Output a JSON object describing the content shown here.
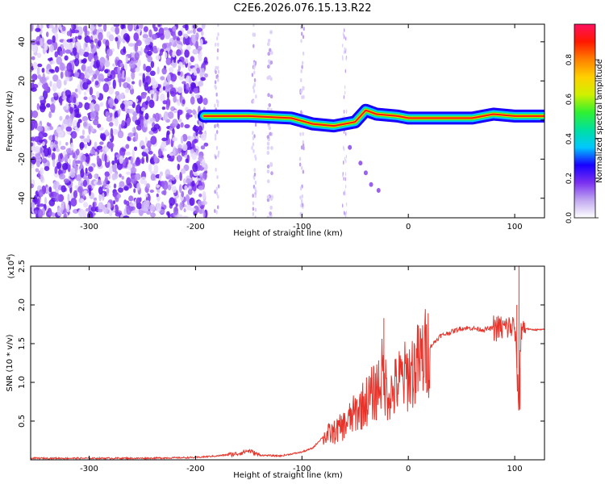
{
  "title": "C2E6.2026.076.15.13.R22",
  "chart_data": [
    {
      "type": "heatmap",
      "xlabel": "Height of straight line (km)",
      "ylabel": "Frequency (Hz)",
      "xlim": [
        -355,
        128
      ],
      "ylim": [
        -50,
        49
      ],
      "xticks": [
        -300,
        -200,
        -100,
        0,
        100
      ],
      "yticks": [
        -40,
        -20,
        0,
        20,
        40
      ],
      "colorbar": {
        "label": "Normalized spectral amplitude",
        "range": [
          0,
          0.98
        ],
        "ticks": [
          0.0,
          0.2,
          0.4,
          0.6,
          0.8
        ],
        "colors": [
          "#ffffff",
          "#c0a8f0",
          "#7a30f0",
          "#1800ff",
          "#00c8ff",
          "#00e0a0",
          "#30f030",
          "#d0f000",
          "#ffd000",
          "#ff8000",
          "#ff1800",
          "#ff1060"
        ]
      },
      "noise_region_x": [
        -355,
        -190
      ],
      "ridge_x": [
        -192,
        -150,
        -110,
        -90,
        -70,
        -50,
        -40,
        -30,
        -10,
        0,
        20,
        60,
        80,
        100,
        128
      ],
      "ridge_y": [
        2,
        2,
        1,
        -2,
        -3,
        -1,
        5,
        3,
        2,
        1,
        1,
        1,
        3,
        2,
        2
      ]
    },
    {
      "type": "line",
      "xlabel": "Height of straight line (km)",
      "ylabel": "SNR (10 * v/v)",
      "y_multiplier": "(x10^4)",
      "multiplier_base": "(x10",
      "multiplier_exp": "4",
      "xlim": [
        -355,
        128
      ],
      "ylim": [
        0,
        2.5
      ],
      "xticks": [
        -300,
        -200,
        -100,
        0,
        100
      ],
      "yticks": [
        0.5,
        1.0,
        1.5,
        2.0,
        2.5
      ],
      "line_color": "#e8332a",
      "series": [
        {
          "x": [
            -355,
            -300,
            -250,
            -200,
            -180,
            -160,
            -150,
            -140,
            -120,
            -100,
            -90,
            -80,
            -70,
            -60,
            -50,
            -40,
            -30,
            -25,
            -20,
            -15,
            -10,
            0,
            10,
            20,
            30,
            40,
            50,
            60,
            70,
            80,
            90,
            100,
            104,
            106,
            110,
            115,
            128
          ],
          "y": [
            0.02,
            0.02,
            0.02,
            0.03,
            0.05,
            0.08,
            0.12,
            0.06,
            0.05,
            0.1,
            0.15,
            0.3,
            0.35,
            0.45,
            0.6,
            0.75,
            0.9,
            1.1,
            0.9,
            0.85,
            1.0,
            1.1,
            1.25,
            1.45,
            1.6,
            1.65,
            1.7,
            1.7,
            1.68,
            1.7,
            1.7,
            1.72,
            0.65,
            1.72,
            1.7,
            1.68,
            1.68
          ]
        }
      ],
      "spikes": [
        {
          "x": -23,
          "y": 1.83
        },
        {
          "x": 104,
          "y": 2.5
        },
        {
          "x": 105,
          "y": 0.65
        },
        {
          "x": 102,
          "y": 2.0
        }
      ]
    }
  ]
}
